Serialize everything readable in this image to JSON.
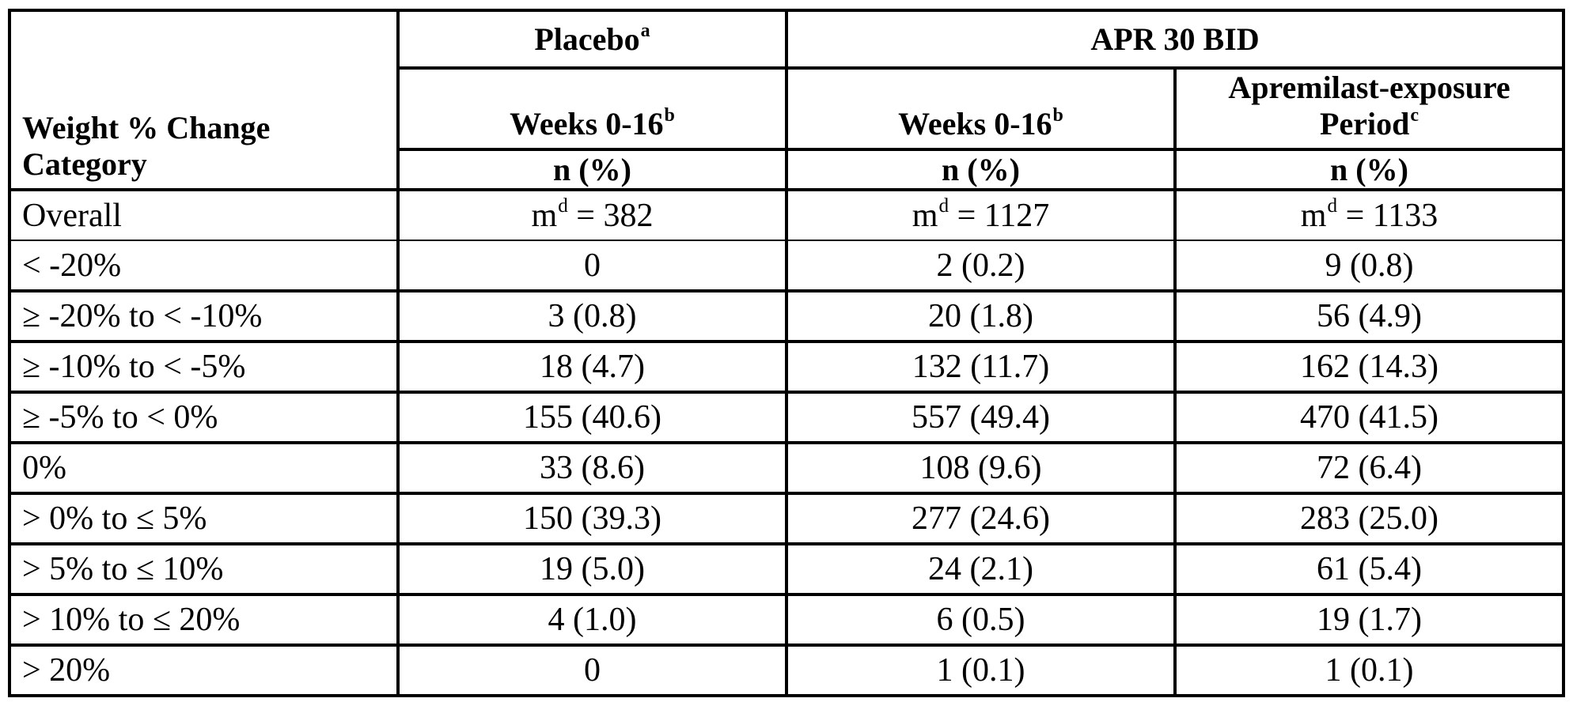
{
  "colors": {
    "border": "#000000",
    "text": "#000000",
    "background": "#ffffff"
  },
  "header": {
    "corner_line1": "Weight % Change",
    "corner_line2": "Category",
    "groups": [
      {
        "label": "Placebo",
        "sup": "a"
      },
      {
        "label": "APR 30 BID",
        "sup": ""
      }
    ],
    "sub": [
      {
        "label": "Weeks 0-16",
        "sup": "b"
      },
      {
        "label": "Weeks 0-16",
        "sup": "b"
      },
      {
        "line1": "Apremilast-exposure",
        "line2": "Period",
        "sup": "c"
      }
    ],
    "unit": "n (%)"
  },
  "overall": {
    "label": "Overall",
    "cells": [
      {
        "base": "m",
        "sup": "d",
        "rest": " = 382"
      },
      {
        "base": "m",
        "sup": "d",
        "rest": " = 1127"
      },
      {
        "base": "m",
        "sup": "d",
        "rest": " = 1133"
      }
    ]
  },
  "rows": [
    {
      "category": "< -20%",
      "placebo": "0",
      "apr_weeks": "2 (0.2)",
      "apr_exposure": "9 (0.8)"
    },
    {
      "category": "≥ -20% to < -10%",
      "placebo": "3 (0.8)",
      "apr_weeks": "20 (1.8)",
      "apr_exposure": "56 (4.9)"
    },
    {
      "category": "≥ -10% to < -5%",
      "placebo": "18 (4.7)",
      "apr_weeks": "132 (11.7)",
      "apr_exposure": "162 (14.3)"
    },
    {
      "category": "≥ -5% to < 0%",
      "placebo": "155 (40.6)",
      "apr_weeks": "557 (49.4)",
      "apr_exposure": "470 (41.5)"
    },
    {
      "category": "0%",
      "placebo": "33 (8.6)",
      "apr_weeks": "108 (9.6)",
      "apr_exposure": "72 (6.4)"
    },
    {
      "category": "> 0% to ≤ 5%",
      "placebo": "150 (39.3)",
      "apr_weeks": "277 (24.6)",
      "apr_exposure": "283 (25.0)"
    },
    {
      "category": "> 5% to ≤ 10%",
      "placebo": "19 (5.0)",
      "apr_weeks": "24 (2.1)",
      "apr_exposure": "61 (5.4)"
    },
    {
      "category": "> 10% to ≤ 20%",
      "placebo": "4 (1.0)",
      "apr_weeks": "6 (0.5)",
      "apr_exposure": "19 (1.7)"
    },
    {
      "category": "> 20%",
      "placebo": "0",
      "apr_weeks": "1 (0.1)",
      "apr_exposure": "1 (0.1)"
    }
  ]
}
